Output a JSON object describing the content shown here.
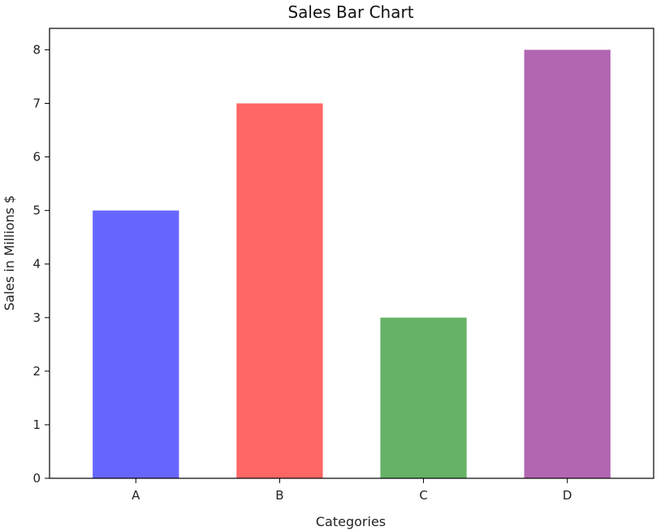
{
  "chart_data": {
    "type": "bar",
    "title": "Sales Bar Chart",
    "xlabel": "Categories",
    "ylabel": "Sales in Millions $",
    "categories": [
      "A",
      "B",
      "C",
      "D"
    ],
    "values": [
      5,
      7,
      3,
      8
    ],
    "colors": [
      "#6666ff",
      "#ff6666",
      "#66b266",
      "#b266b2"
    ],
    "ylim": [
      0,
      8.4
    ],
    "yticks": [
      0,
      1,
      2,
      3,
      4,
      5,
      6,
      7,
      8
    ],
    "ytick_labels": [
      "0",
      "1",
      "2",
      "3",
      "4",
      "5",
      "6",
      "7",
      "8"
    ],
    "grid": false,
    "legend": "none"
  }
}
